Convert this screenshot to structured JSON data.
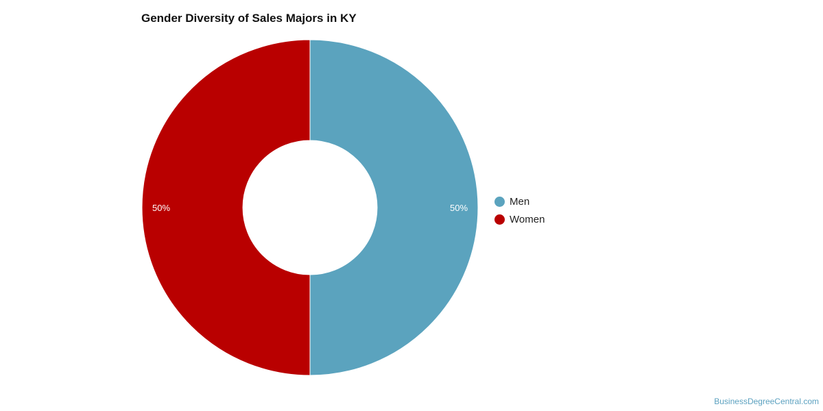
{
  "chart_data": {
    "type": "pie",
    "variant": "donut",
    "title": "Gender Diversity of Sales Majors in KY",
    "slices": [
      {
        "name": "Men",
        "value": 50,
        "label": "50%",
        "color": "#5ba3be"
      },
      {
        "name": "Women",
        "value": 50,
        "label": "50%",
        "color": "#b90000"
      }
    ],
    "legend_position": "right"
  },
  "source": "BusinessDegreeCentral.com"
}
